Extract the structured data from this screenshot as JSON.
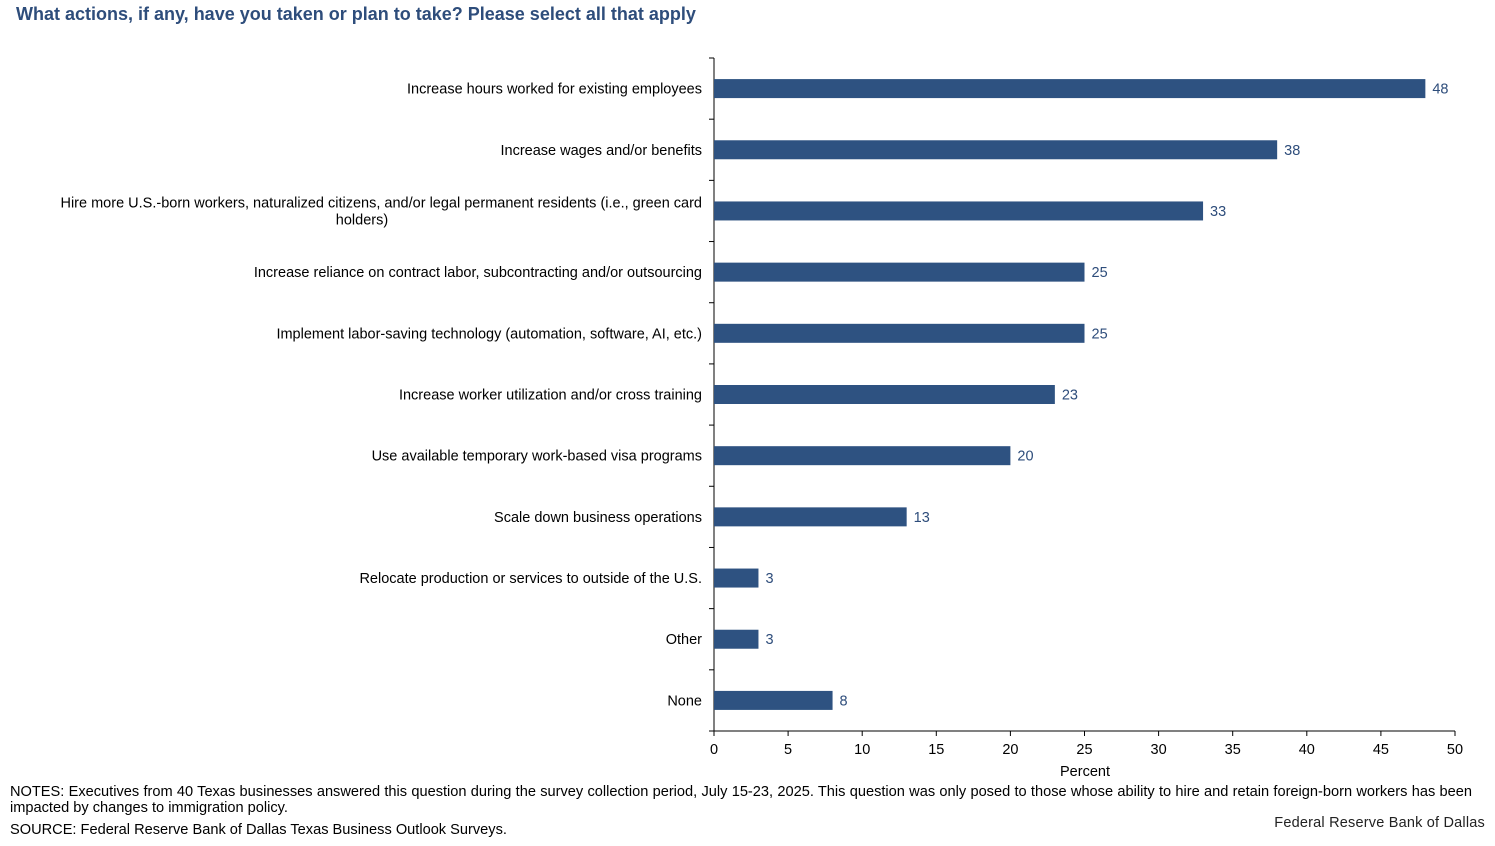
{
  "title": "What actions, if any, have you taken or plan to take? Please select all that apply",
  "notes": "NOTES: Executives from 40 Texas businesses answered this question during the survey collection period, July 15-23, 2025. This question was only posed to those whose ability to hire and retain foreign-born workers has been impacted by changes to immigration policy.",
  "source": "SOURCE: Federal Reserve Bank of Dallas Texas Business Outlook Surveys.",
  "credit": "Federal Reserve Bank of Dallas",
  "colors": {
    "bar": "#2e5281",
    "title": "#2e4d7b",
    "data_label": "#2e4d7b"
  },
  "chart_data": {
    "type": "bar",
    "orientation": "horizontal",
    "categories": [
      [
        "Increase hours worked for existing employees"
      ],
      [
        "Increase wages and/or benefits"
      ],
      [
        "Hire more U.S.-born workers, naturalized citizens, and/or legal permanent residents (i.e., green card",
        "holders)"
      ],
      [
        "Increase reliance on contract labor, subcontracting and/or outsourcing"
      ],
      [
        "Implement labor-saving technology (automation, software, AI, etc.)"
      ],
      [
        "Increase worker utilization and/or cross training"
      ],
      [
        "Use available temporary work-based visa programs"
      ],
      [
        "Scale down business operations"
      ],
      [
        "Relocate production or services to outside of the U.S."
      ],
      [
        "Other"
      ],
      [
        "None"
      ]
    ],
    "values": [
      48,
      38,
      33,
      25,
      25,
      23,
      20,
      13,
      3,
      3,
      8
    ],
    "data_labels": [
      "48",
      "38",
      "33",
      "25",
      "25",
      "23",
      "20",
      "13",
      "3",
      "3",
      "8"
    ],
    "xlabel": "Percent",
    "xlim": [
      0,
      50
    ],
    "xticks": [
      0,
      5,
      10,
      15,
      20,
      25,
      30,
      35,
      40,
      45,
      50
    ],
    "grid": false,
    "legend": "none"
  }
}
